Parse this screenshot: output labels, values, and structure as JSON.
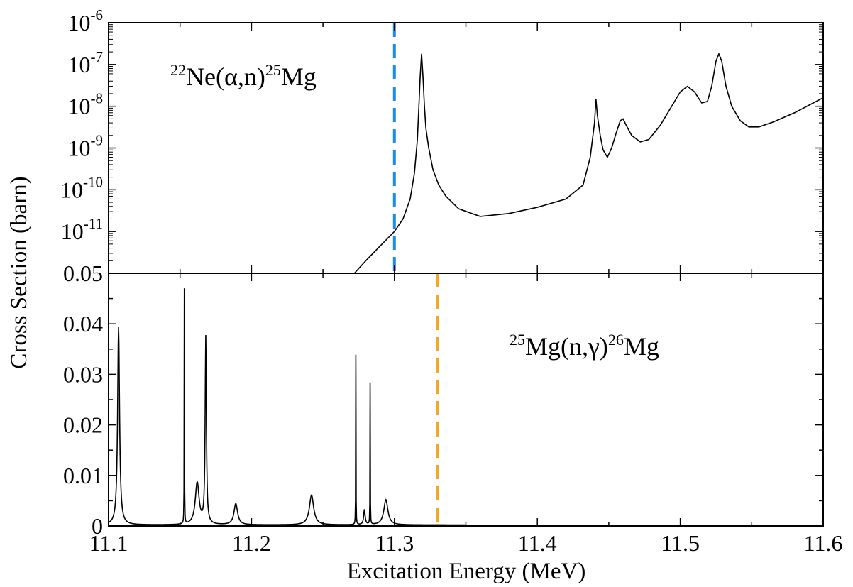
{
  "chart_data": [
    {
      "panel": "top",
      "type": "line",
      "title": "",
      "annotation": {
        "pre": "22",
        "a": "Ne(",
        "greek": "α",
        "b": ",n)",
        "post": "25",
        "c": "Mg"
      },
      "xlabel": "Excitation Energy (MeV)",
      "ylabel": "Cross Section (barn)",
      "ylim": [
        1e-12,
        1e-06
      ],
      "yscale": "log",
      "xlim": [
        11.1,
        11.6
      ],
      "ytick_exponents": [
        "-6",
        "-7",
        "-8",
        "-9",
        "-10",
        "-11"
      ],
      "ytick_base": "10",
      "threshold": {
        "x": 11.3,
        "color": "#1e8ce6"
      },
      "series": [
        {
          "color": "#000000",
          "x": [
            11.272,
            11.28,
            11.29,
            11.3,
            11.306,
            11.311,
            11.314,
            11.316,
            11.317,
            11.318,
            11.319,
            11.32,
            11.321,
            11.322,
            11.324,
            11.327,
            11.331,
            11.336,
            11.345,
            11.36,
            11.38,
            11.4,
            11.42,
            11.432,
            11.437,
            11.44,
            11.441,
            11.442,
            11.444,
            11.446,
            11.449,
            11.452,
            11.455,
            11.458,
            11.46,
            11.462,
            11.466,
            11.472,
            11.478,
            11.486,
            11.494,
            11.5,
            11.505,
            11.51,
            11.515,
            11.519,
            11.522,
            11.525,
            11.527,
            11.529,
            11.532,
            11.536,
            11.542,
            11.548,
            11.555,
            11.565,
            11.58,
            11.6
          ],
          "y": [
            1e-12,
            2e-12,
            4.5e-12,
            1e-11,
            2e-11,
            6e-11,
            2.5e-10,
            1.5e-09,
            8e-09,
            5e-08,
            1.8e-07,
            5e-08,
            1e-08,
            3e-09,
            1e-09,
            3e-10,
            1.3e-10,
            7e-11,
            3.5e-11,
            2.3e-11,
            2.7e-11,
            3.8e-11,
            6e-11,
            1.3e-10,
            6e-10,
            4e-09,
            1.5e-08,
            6e-09,
            2e-09,
            9e-10,
            6e-10,
            1e-09,
            2.2e-09,
            4.5e-09,
            5e-09,
            3.6e-09,
            2e-09,
            1.4e-09,
            1.6e-09,
            3.5e-09,
            1e-08,
            2.2e-08,
            3e-08,
            2.2e-08,
            1.2e-08,
            1.3e-08,
            3e-08,
            1.2e-07,
            1.8e-07,
            1.2e-07,
            3e-08,
            1e-08,
            4.5e-09,
            3.2e-09,
            3.2e-09,
            4.2e-09,
            7e-09,
            1.6e-08
          ]
        }
      ]
    },
    {
      "panel": "bottom",
      "type": "line",
      "title": "",
      "annotation": {
        "pre": "25",
        "a": "Mg(n,",
        "greek": "γ",
        "b": ")",
        "post": "26",
        "c": "Mg"
      },
      "xlabel": "Excitation Energy (MeV)",
      "ylabel": "Cross Section (barn)",
      "xlim": [
        11.1,
        11.6
      ],
      "ylim": [
        0,
        0.05
      ],
      "xticks": [
        "11.1",
        "11.2",
        "11.3",
        "11.4",
        "11.5",
        "11.6"
      ],
      "yticks": [
        "0",
        "0.01",
        "0.02",
        "0.03",
        "0.04",
        "0.05"
      ],
      "threshold": {
        "x": 11.33,
        "color": "#f5a623"
      },
      "peaks": [
        {
          "e": 11.107,
          "h": 0.0392,
          "w": 0.0008
        },
        {
          "e": 11.153,
          "h": 0.0465,
          "w": 0.0001
        },
        {
          "e": 11.162,
          "h": 0.0083,
          "w": 0.0016
        },
        {
          "e": 11.168,
          "h": 0.037,
          "w": 0.0005
        },
        {
          "e": 11.189,
          "h": 0.0042,
          "w": 0.0015
        },
        {
          "e": 11.242,
          "h": 0.0059,
          "w": 0.0018
        },
        {
          "e": 11.273,
          "h": 0.0336,
          "w": 0.0001
        },
        {
          "e": 11.279,
          "h": 0.003,
          "w": 0.0006
        },
        {
          "e": 11.283,
          "h": 0.028,
          "w": 0.0001
        },
        {
          "e": 11.294,
          "h": 0.005,
          "w": 0.0017
        }
      ],
      "baseline": 0.0002
    }
  ]
}
